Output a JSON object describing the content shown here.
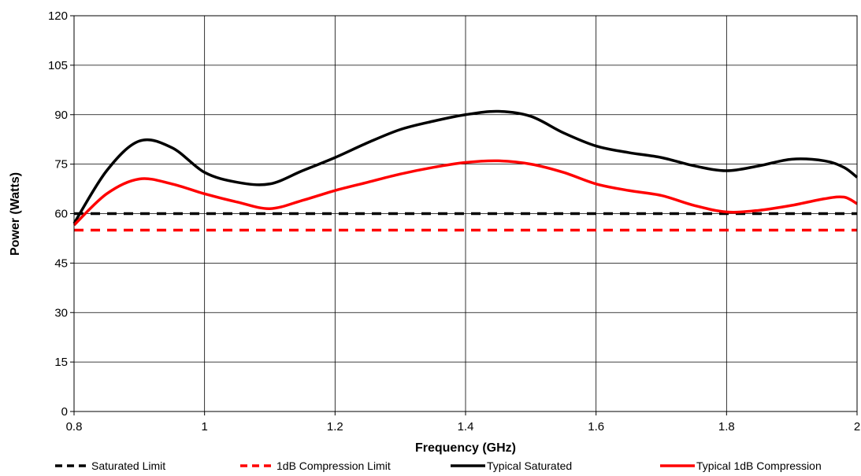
{
  "chart_data": {
    "type": "line",
    "title": "",
    "xlabel": "Frequency (GHz)",
    "ylabel": "Power (Watts)",
    "xlim": [
      0.8,
      2.0
    ],
    "ylim": [
      0,
      120
    ],
    "x_ticks": [
      "0.8",
      "1",
      "1.2",
      "1.4",
      "1.6",
      "1.8",
      "2"
    ],
    "y_ticks": [
      "0",
      "15",
      "30",
      "45",
      "60",
      "75",
      "90",
      "105",
      "120"
    ],
    "grid": true,
    "legend_position": "bottom",
    "series": [
      {
        "name": "Saturated Limit",
        "color": "#000000",
        "dashed": true,
        "x": [
          0.8,
          2.0
        ],
        "y": [
          60,
          60
        ]
      },
      {
        "name": "1dB Compression Limit",
        "color": "#ff0000",
        "dashed": true,
        "x": [
          0.8,
          2.0
        ],
        "y": [
          55,
          55
        ]
      },
      {
        "name": "Typical Saturated",
        "color": "#000000",
        "dashed": false,
        "x": [
          0.8,
          0.85,
          0.9,
          0.95,
          1.0,
          1.05,
          1.1,
          1.15,
          1.2,
          1.25,
          1.3,
          1.35,
          1.4,
          1.45,
          1.5,
          1.55,
          1.6,
          1.65,
          1.7,
          1.75,
          1.8,
          1.85,
          1.9,
          1.95,
          1.98,
          2.0
        ],
        "y": [
          57,
          73,
          82,
          80,
          72.5,
          69.5,
          69,
          73,
          77,
          81.5,
          85.5,
          88,
          90,
          91,
          89.5,
          84.5,
          80.5,
          78.5,
          77,
          74.5,
          73,
          74.5,
          76.5,
          76,
          74,
          71
        ]
      },
      {
        "name": "Typical 1dB Compression",
        "color": "#ff0000",
        "dashed": false,
        "x": [
          0.8,
          0.85,
          0.9,
          0.95,
          1.0,
          1.05,
          1.1,
          1.15,
          1.2,
          1.25,
          1.3,
          1.35,
          1.4,
          1.45,
          1.5,
          1.55,
          1.6,
          1.65,
          1.7,
          1.75,
          1.8,
          1.85,
          1.9,
          1.95,
          1.98,
          2.0
        ],
        "y": [
          56.5,
          66,
          70.5,
          69,
          66,
          63.5,
          61.5,
          64,
          67,
          69.5,
          72,
          74,
          75.5,
          76,
          75,
          72.5,
          69,
          67,
          65.5,
          62.5,
          60.5,
          61,
          62.5,
          64.5,
          65,
          63
        ]
      }
    ]
  }
}
